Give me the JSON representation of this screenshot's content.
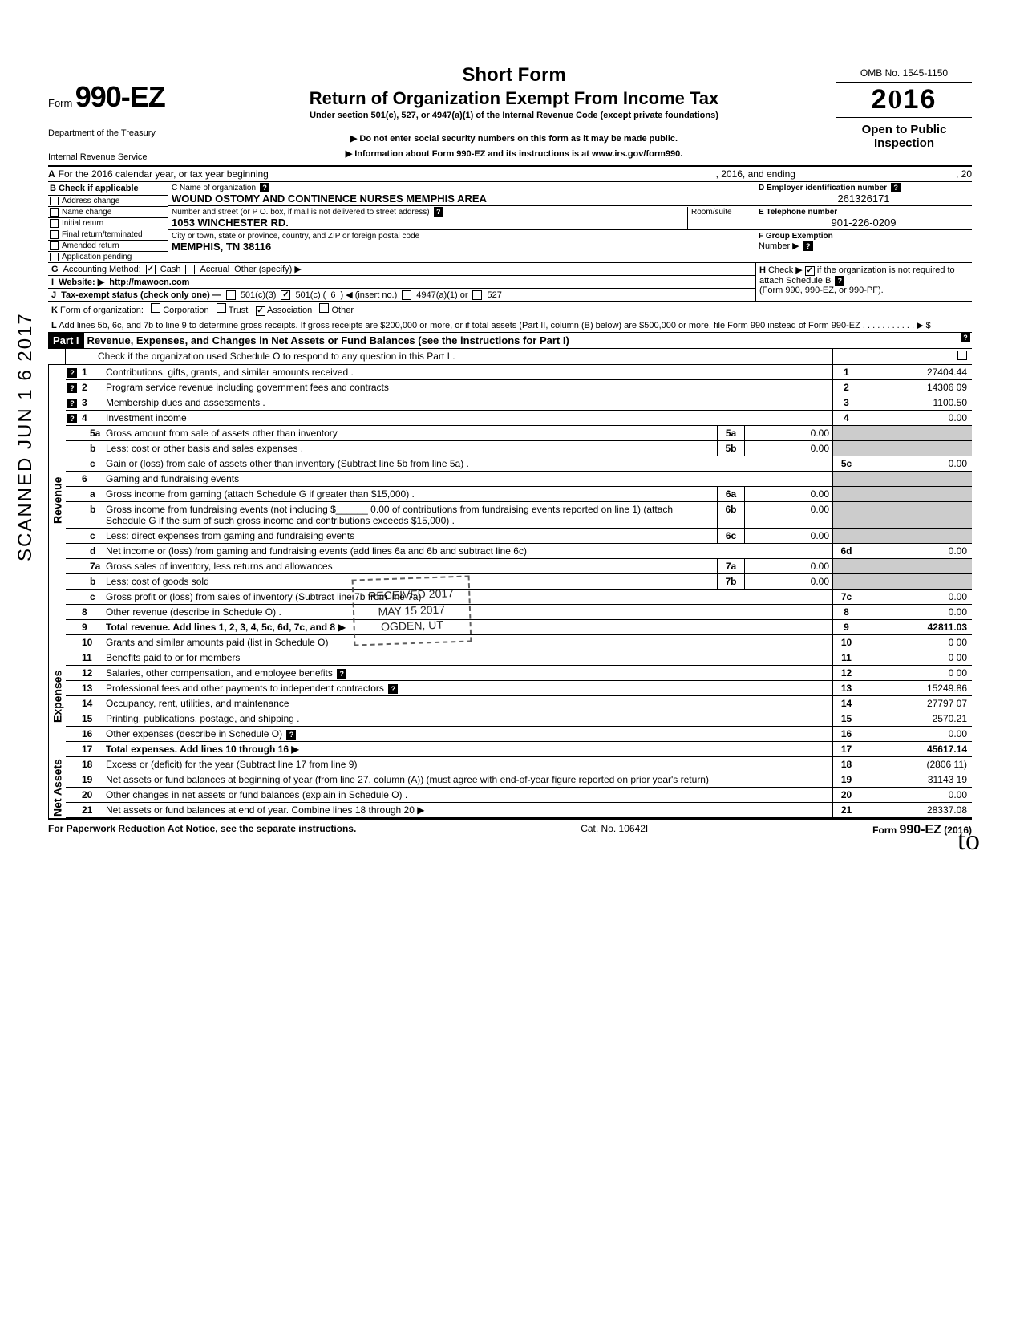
{
  "sidetext": "SCANNED JUN 1 6 2017",
  "form": {
    "form_label": "Form",
    "number": "990-EZ",
    "dept1": "Department of the Treasury",
    "dept2": "Internal Revenue Service"
  },
  "title": {
    "short": "Short Form",
    "return": "Return of Organization Exempt From Income Tax",
    "under": "Under section 501(c), 527, or 4947(a)(1) of the Internal Revenue Code (except private foundations)",
    "do_not": "▶ Do not enter social security numbers on this form as it may be made public.",
    "info": "▶ Information about Form 990-EZ and its instructions is at www.irs.gov/form990."
  },
  "right": {
    "omb": "OMB No. 1545-1150",
    "year": "2016",
    "open1": "Open to Public",
    "open2": "Inspection"
  },
  "lineA": {
    "lbl": "A",
    "text1": "For the 2016 calendar year, or tax year beginning",
    "text2": ", 2016, and ending",
    "text3": ", 20"
  },
  "colB": {
    "hdr": "B  Check if applicable",
    "items": [
      "Address change",
      "Name change",
      "Initial return",
      "Final return/terminated",
      "Amended return",
      "Application pending"
    ]
  },
  "colC": {
    "name_lbl": "C  Name of organization",
    "name": "WOUND OSTOMY AND CONTINENCE NURSES MEMPHIS AREA",
    "street_lbl": "Number and street (or P O. box, if mail is not delivered to street address)",
    "room_lbl": "Room/suite",
    "street": "1053 WINCHESTER RD.",
    "city_lbl": "City or town, state or province, country, and ZIP or foreign postal code",
    "city": "MEMPHIS, TN 38116"
  },
  "colD": {
    "ein_lbl": "D Employer identification number",
    "ein": "261326171",
    "tel_lbl": "E Telephone number",
    "tel": "901-226-0209",
    "grp_lbl": "F Group Exemption",
    "grp2": "Number ▶"
  },
  "lineG": {
    "lbl": "G",
    "text": "Accounting Method:",
    "cash": "Cash",
    "accrual": "Accrual",
    "other": "Other (specify) ▶"
  },
  "lineH": {
    "lbl": "H",
    "text1": "Check ▶",
    "text2": "if the organization is not required to attach Schedule B",
    "text3": "(Form 990, 990-EZ, or 990-PF)."
  },
  "lineI": {
    "lbl": "I",
    "text": "Website: ▶",
    "val": "http://mawocn.com"
  },
  "lineJ": {
    "lbl": "J",
    "text": "Tax-exempt status (check only one) —",
    "c3": "501(c)(3)",
    "c": "501(c) (",
    "n": "6",
    "ins": ") ◀ (insert no.)",
    "a1": "4947(a)(1) or",
    "527": "527"
  },
  "lineK": {
    "lbl": "K",
    "text": "Form of organization:",
    "corp": "Corporation",
    "trust": "Trust",
    "assoc": "Association",
    "other": "Other"
  },
  "lineL": {
    "lbl": "L",
    "text": "Add lines 5b, 6c, and 7b to line 9 to determine gross receipts. If gross receipts are $200,000 or more, or if total assets (Part II, column (B) below) are $500,000 or more, file Form 990 instead of Form 990-EZ .   .   .   .   .   .   .   .   .   .   .   ▶   $"
  },
  "part1": {
    "hdr": "Part I",
    "title": "Revenue, Expenses, and Changes in Net Assets or Fund Balances (see the instructions for Part I)",
    "check": "Check if the organization used Schedule O to respond to any question in this Part I ."
  },
  "side": {
    "rev": "Revenue",
    "exp": "Expenses",
    "net": "Net Assets"
  },
  "rows": [
    {
      "n": "1",
      "d": "Contributions, gifts, grants, and similar amounts received .",
      "en": "1",
      "ev": "27404.44",
      "help": true
    },
    {
      "n": "2",
      "d": "Program service revenue including government fees and contracts",
      "en": "2",
      "ev": "14306 09",
      "help": true
    },
    {
      "n": "3",
      "d": "Membership dues and assessments .",
      "en": "3",
      "ev": "1100.50",
      "help": true
    },
    {
      "n": "4",
      "d": "Investment income",
      "en": "4",
      "ev": "0.00",
      "help": true
    },
    {
      "n": "5a",
      "d": "Gross amount from sale of assets other than inventory",
      "mn": "5a",
      "mv": "0.00",
      "sub": true
    },
    {
      "n": "b",
      "d": "Less: cost or other basis and sales expenses .",
      "mn": "5b",
      "mv": "0.00",
      "sub": true
    },
    {
      "n": "c",
      "d": "Gain or (loss) from sale of assets other than inventory (Subtract line 5b from line 5a) .",
      "en": "5c",
      "ev": "0.00",
      "sub": true
    },
    {
      "n": "6",
      "d": "Gaming and fundraising events"
    },
    {
      "n": "a",
      "d": "Gross income from gaming (attach Schedule G if greater than $15,000) .",
      "mn": "6a",
      "mv": "0.00",
      "sub": true
    },
    {
      "n": "b",
      "d": "Gross income from fundraising events (not including  $______ 0.00 of contributions from fundraising events reported on line 1) (attach Schedule G if the sum of such gross income and contributions exceeds $15,000) .",
      "mn": "6b",
      "mv": "0.00",
      "sub": true
    },
    {
      "n": "c",
      "d": "Less: direct expenses from gaming and fundraising events",
      "mn": "6c",
      "mv": "0.00",
      "sub": true
    },
    {
      "n": "d",
      "d": "Net income or (loss) from gaming and fundraising events (add lines 6a and 6b and subtract line 6c)",
      "en": "6d",
      "ev": "0.00",
      "sub": true
    },
    {
      "n": "7a",
      "d": "Gross sales of inventory, less returns and allowances",
      "mn": "7a",
      "mv": "0.00",
      "sub": true
    },
    {
      "n": "b",
      "d": "Less: cost of goods sold",
      "mn": "7b",
      "mv": "0.00",
      "sub": true
    },
    {
      "n": "c",
      "d": "Gross profit or (loss) from sales of inventory (Subtract line 7b from line 7a)",
      "en": "7c",
      "ev": "0.00",
      "sub": true
    },
    {
      "n": "8",
      "d": "Other revenue (describe in Schedule O) .",
      "en": "8",
      "ev": "0.00"
    },
    {
      "n": "9",
      "d": "Total revenue. Add lines 1, 2, 3, 4, 5c, 6d, 7c, and 8   ▶",
      "en": "9",
      "ev": "42811.03",
      "bold": true
    }
  ],
  "exp_rows": [
    {
      "n": "10",
      "d": "Grants and similar amounts paid (list in Schedule O)",
      "en": "10",
      "ev": "0 00"
    },
    {
      "n": "11",
      "d": "Benefits paid to or for members",
      "en": "11",
      "ev": "0 00"
    },
    {
      "n": "12",
      "d": "Salaries, other compensation, and employee benefits",
      "en": "12",
      "ev": "0 00",
      "helpd": true
    },
    {
      "n": "13",
      "d": "Professional fees and other payments to independent contractors",
      "en": "13",
      "ev": "15249.86",
      "helpd": true
    },
    {
      "n": "14",
      "d": "Occupancy, rent, utilities, and maintenance",
      "en": "14",
      "ev": "27797 07"
    },
    {
      "n": "15",
      "d": "Printing, publications, postage, and shipping .",
      "en": "15",
      "ev": "2570.21"
    },
    {
      "n": "16",
      "d": "Other expenses (describe in Schedule O)",
      "en": "16",
      "ev": "0.00",
      "helpd": true
    },
    {
      "n": "17",
      "d": "Total expenses. Add lines 10 through 16   ▶",
      "en": "17",
      "ev": "45617.14",
      "bold": true
    }
  ],
  "net_rows": [
    {
      "n": "18",
      "d": "Excess or (deficit) for the year (Subtract line 17 from line 9)",
      "en": "18",
      "ev": "(2806 11)"
    },
    {
      "n": "19",
      "d": "Net assets or fund balances at beginning of year (from line 27, column (A)) (must agree with end-of-year figure reported on prior year's return)",
      "en": "19",
      "ev": "31143 19"
    },
    {
      "n": "20",
      "d": "Other changes in net assets or fund balances (explain in Schedule O) .",
      "en": "20",
      "ev": "0.00"
    },
    {
      "n": "21",
      "d": "Net assets or fund balances at end of year. Combine lines 18 through 20   ▶",
      "en": "21",
      "ev": "28337.08"
    }
  ],
  "footer": {
    "left": "For Paperwork Reduction Act Notice, see the separate instructions.",
    "mid": "Cat. No. 10642I",
    "right1": "Form",
    "right2": "990-EZ",
    "right3": "(2016)"
  },
  "stamp": {
    "l1": "RECEIVED 2017",
    "l2": "MAY 15 2017",
    "l3": "OGDEN, UT"
  },
  "initial": "to"
}
